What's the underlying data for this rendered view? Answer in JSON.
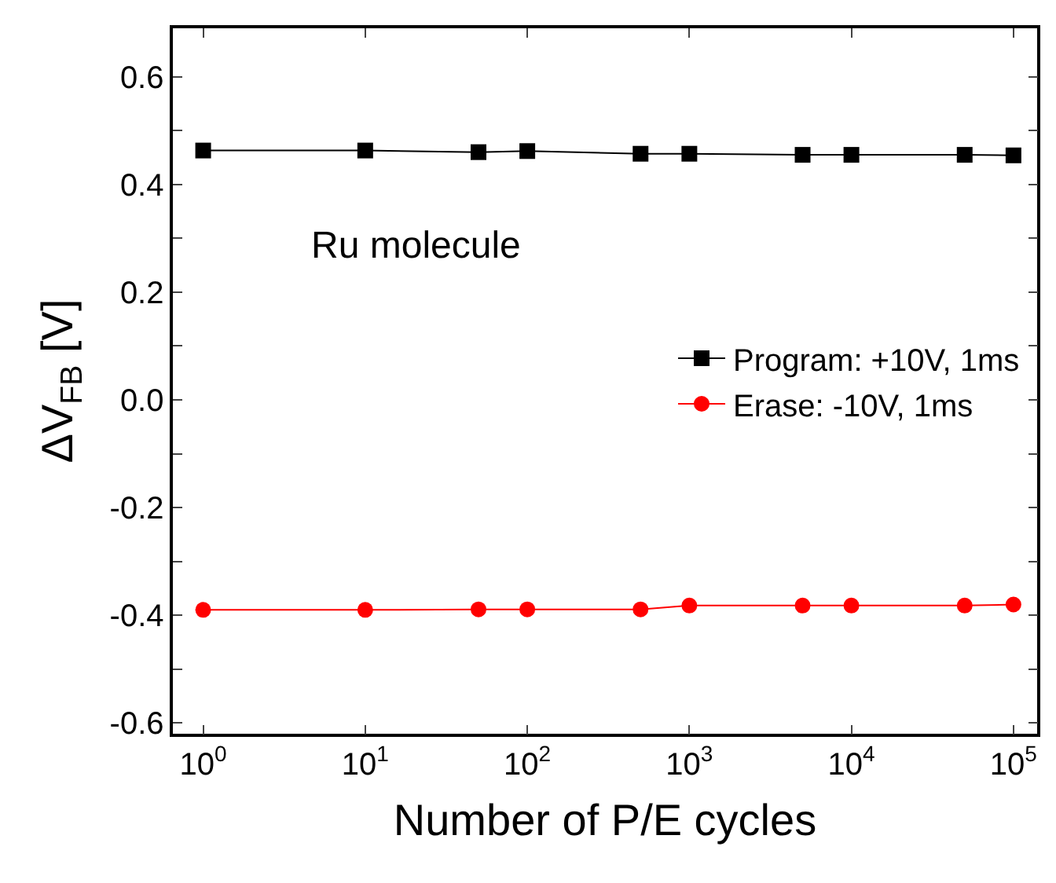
{
  "chart_data": {
    "type": "line",
    "xlabel": "Number of P/E cycles",
    "ylabel": "ΔV$_{FB}$ [V]",
    "x": [
      1,
      10,
      50,
      100,
      500,
      1000,
      5000,
      10000,
      50000,
      100000
    ],
    "series": [
      {
        "name": "Program: +10V, 1ms",
        "color": "#000000",
        "marker": "square",
        "values": [
          0.463,
          0.463,
          0.46,
          0.462,
          0.457,
          0.457,
          0.455,
          0.455,
          0.455,
          0.454
        ]
      },
      {
        "name": "Erase: -10V, 1ms",
        "color": "#ff0000",
        "marker": "circle",
        "values": [
          -0.39,
          -0.39,
          -0.389,
          -0.389,
          -0.389,
          -0.382,
          -0.382,
          -0.382,
          -0.382,
          -0.38
        ]
      }
    ],
    "log": "x",
    "xlim": [
      0.65,
      140000
    ],
    "xticks": [
      {
        "value": 1,
        "label": "10$^{0}$"
      },
      {
        "value": 10,
        "label": "10$^{1}$"
      },
      {
        "value": 100,
        "label": "10$^{2}$"
      },
      {
        "value": 1000,
        "label": "10$^{3}$"
      },
      {
        "value": 10000,
        "label": "10$^{4}$"
      },
      {
        "value": 100000,
        "label": "10$^{5}$"
      }
    ],
    "ylim": [
      -0.62,
      0.69
    ],
    "yticks": [
      -0.6,
      {
        "value": -0.5,
        "label": null
      },
      -0.4,
      {
        "value": -0.3,
        "label": null
      },
      -0.2,
      {
        "value": -0.1,
        "label": null
      },
      {
        "value": 0,
        "label": "0.0"
      },
      {
        "value": 0.1,
        "label": null
      },
      0.2,
      {
        "value": 0.3,
        "label": null
      },
      0.4,
      {
        "value": 0.5,
        "label": null
      },
      0.6
    ],
    "annotations": [
      "Ru molecule"
    ],
    "legend": "right",
    "line_style": "solid"
  }
}
